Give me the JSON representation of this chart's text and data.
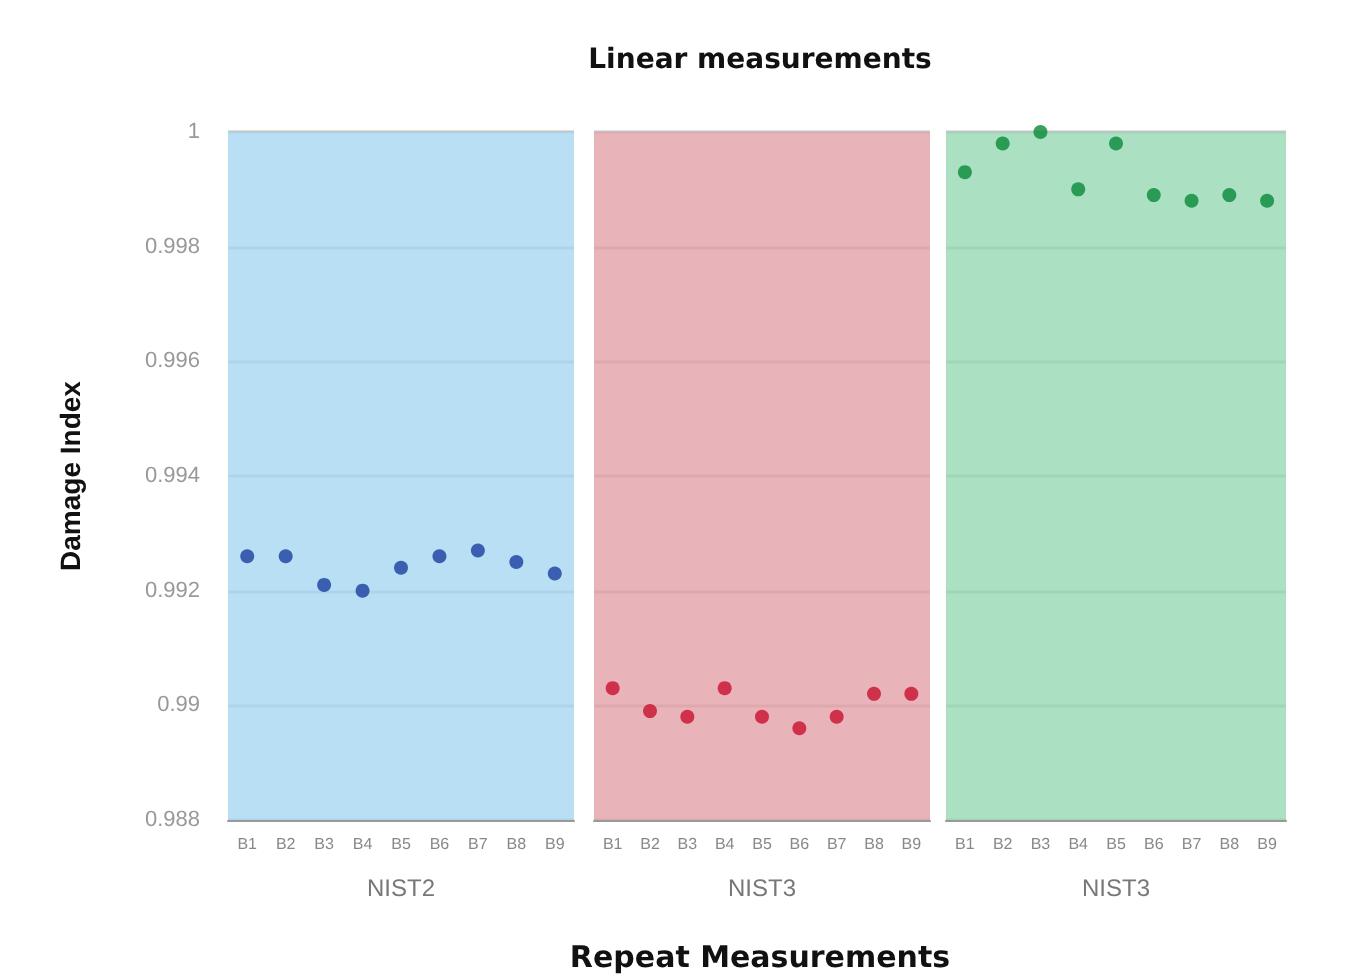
{
  "chart_data": [
    {
      "type": "scatter",
      "ylabel": "Damage Index",
      "xlabel": "NIST2",
      "categories": [
        "B1",
        "B2",
        "B3",
        "B4",
        "B5",
        "B6",
        "B7",
        "B8",
        "B9"
      ],
      "series": [
        {
          "color": "#1a3fa0",
          "values": [
            0.9926,
            0.9926,
            0.9921,
            0.992,
            0.9924,
            0.9926,
            0.9927,
            0.9925,
            0.9923
          ]
        }
      ],
      "ylim": [
        0.988,
        1
      ],
      "yticks": [
        0.988,
        0.99,
        0.992,
        0.994,
        0.996,
        0.998,
        1
      ],
      "grid": "y",
      "marker": "circle",
      "bands": [
        {
          "axis": "y",
          "from": 0.988,
          "to": 1,
          "color": "#a8d8f0"
        }
      ]
    },
    {
      "type": "scatter",
      "title": "Linear measurements",
      "xlabel": "NIST3",
      "annotations": [
        "Repeat Measurements"
      ],
      "categories": [
        "B1",
        "B2",
        "B3",
        "B4",
        "B5",
        "B6",
        "B7",
        "B8",
        "B9"
      ],
      "series": [
        {
          "color": "#c8102e",
          "values": [
            0.9903,
            0.9899,
            0.9898,
            0.9903,
            0.9898,
            0.9896,
            0.9898,
            0.9902,
            0.9902
          ]
        }
      ],
      "ylim": [
        0.988,
        1
      ],
      "yticks": [
        0.988,
        0.99,
        0.992,
        0.994,
        0.996,
        0.998,
        1
      ],
      "grid": "y",
      "marker": "circle",
      "tick_labels": "x",
      "bands": [
        {
          "axis": "y",
          "from": 0.988,
          "to": 1,
          "color": "#e3a2aa"
        }
      ]
    },
    {
      "type": "scatter",
      "xlabel": "NIST3",
      "categories": [
        "B1",
        "B2",
        "B3",
        "B4",
        "B5",
        "B6",
        "B7",
        "B8",
        "B9"
      ],
      "series": [
        {
          "color": "#0a8a3a",
          "values": [
            0.9993,
            0.9998,
            1.0,
            0.999,
            0.9998,
            0.9989,
            0.9988,
            0.9989,
            0.9988
          ]
        }
      ],
      "ylim": [
        0.988,
        1
      ],
      "yticks": [
        0.988,
        0.99,
        0.992,
        0.994,
        0.996,
        0.998,
        1
      ],
      "grid": "y",
      "marker": "circle",
      "tick_labels": "x",
      "bands": [
        {
          "axis": "y",
          "from": 0.988,
          "to": 1,
          "color": "#98dbb5"
        }
      ]
    }
  ]
}
